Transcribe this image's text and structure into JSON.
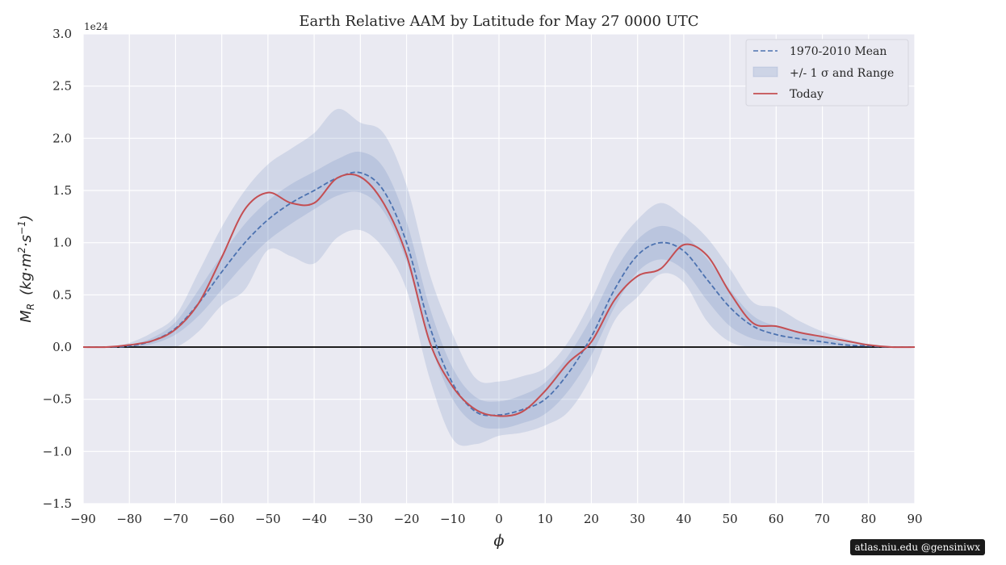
{
  "badge_text": "atlas.niu.edu  @gensiniwx",
  "chart_data": {
    "type": "line",
    "title": "Earth Relative AAM by Latitude for May 27 0000 UTC",
    "xlabel": "ϕ",
    "ylabel": "M_R  (kg·m²·s⁻¹)",
    "ylabel_main": "M",
    "ylabel_sub": "R",
    "ylabel_tail": "(kg·m",
    "ylabel_sup1": "2",
    "ylabel_mid": "·s",
    "ylabel_sup2": "−1",
    "ylabel_close": ")",
    "y_multiplier": "1e24",
    "xlim": [
      -90,
      90
    ],
    "ylim": [
      -1.5,
      3.0
    ],
    "xticks": [
      -90,
      -80,
      -70,
      -60,
      -50,
      -40,
      -30,
      -20,
      -10,
      0,
      10,
      20,
      30,
      40,
      50,
      60,
      70,
      80,
      90
    ],
    "xtick_labels": [
      "−90",
      "−80",
      "−70",
      "−60",
      "−50",
      "−40",
      "−30",
      "−20",
      "−10",
      "0",
      "10",
      "20",
      "30",
      "40",
      "50",
      "60",
      "70",
      "80",
      "90"
    ],
    "yticks": [
      -1.5,
      -1.0,
      -0.5,
      0.0,
      0.5,
      1.0,
      1.5,
      2.0,
      2.5,
      3.0
    ],
    "ytick_labels": [
      "−1.5",
      "−1.0",
      "−0.5",
      "0.0",
      "0.5",
      "1.0",
      "1.5",
      "2.0",
      "2.5",
      "3.0"
    ],
    "grid": true,
    "legend_position": "top-right",
    "zero_line": true,
    "colors": {
      "background": "#eaeaf2",
      "mean": "#4c72b0",
      "band": "#4c72b0",
      "today": "#c44e52",
      "zero": "#000000",
      "grid": "#ffffff"
    },
    "x": [
      -90,
      -85,
      -80,
      -75,
      -70,
      -65,
      -60,
      -55,
      -50,
      -45,
      -40,
      -35,
      -30,
      -25,
      -20,
      -15,
      -10,
      -5,
      0,
      5,
      10,
      15,
      20,
      25,
      30,
      35,
      40,
      45,
      50,
      55,
      60,
      65,
      70,
      75,
      80,
      85,
      90
    ],
    "series": [
      {
        "name": "1970-2010 Mean",
        "style": "dashed",
        "values": [
          0.0,
          0.0,
          0.01,
          0.06,
          0.18,
          0.42,
          0.72,
          1.0,
          1.22,
          1.38,
          1.5,
          1.62,
          1.67,
          1.5,
          1.0,
          0.2,
          -0.35,
          -0.62,
          -0.65,
          -0.6,
          -0.5,
          -0.25,
          0.1,
          0.55,
          0.88,
          1.0,
          0.92,
          0.65,
          0.38,
          0.2,
          0.12,
          0.08,
          0.05,
          0.02,
          0.01,
          0.0,
          0.0
        ]
      },
      {
        "name": "Today",
        "style": "solid",
        "values": [
          0.0,
          0.0,
          0.02,
          0.06,
          0.17,
          0.42,
          0.86,
          1.32,
          1.48,
          1.38,
          1.38,
          1.62,
          1.63,
          1.38,
          0.88,
          0.05,
          -0.38,
          -0.6,
          -0.66,
          -0.62,
          -0.42,
          -0.15,
          0.05,
          0.45,
          0.68,
          0.75,
          0.98,
          0.88,
          0.52,
          0.23,
          0.2,
          0.14,
          0.1,
          0.06,
          0.02,
          0.0,
          0.0
        ]
      }
    ],
    "bands": {
      "name": "+/- 1 σ and Range",
      "sigma_lower": [
        0.0,
        0.0,
        0.0,
        0.03,
        0.12,
        0.3,
        0.55,
        0.8,
        1.02,
        1.18,
        1.32,
        1.45,
        1.48,
        1.3,
        0.82,
        0.05,
        -0.5,
        -0.74,
        -0.78,
        -0.73,
        -0.64,
        -0.42,
        -0.08,
        0.38,
        0.72,
        0.84,
        0.74,
        0.45,
        0.2,
        0.08,
        0.05,
        0.03,
        0.02,
        0.01,
        0.0,
        0.0,
        0.0
      ],
      "sigma_upper": [
        0.0,
        0.0,
        0.02,
        0.09,
        0.24,
        0.55,
        0.88,
        1.18,
        1.4,
        1.56,
        1.68,
        1.8,
        1.87,
        1.72,
        1.2,
        0.38,
        -0.2,
        -0.48,
        -0.52,
        -0.46,
        -0.34,
        -0.08,
        0.28,
        0.72,
        1.03,
        1.16,
        1.08,
        0.85,
        0.55,
        0.3,
        0.2,
        0.14,
        0.09,
        0.04,
        0.01,
        0.0,
        0.0
      ],
      "range_lower": [
        0.0,
        0.0,
        0.0,
        0.0,
        0.0,
        0.15,
        0.4,
        0.55,
        0.93,
        0.87,
        0.8,
        1.05,
        1.12,
        0.95,
        0.55,
        -0.3,
        -0.88,
        -0.93,
        -0.85,
        -0.82,
        -0.75,
        -0.62,
        -0.28,
        0.25,
        0.48,
        0.7,
        0.62,
        0.25,
        0.05,
        0.0,
        0.0,
        0.0,
        0.0,
        0.0,
        0.0,
        0.0,
        0.0
      ],
      "range_upper": [
        0.0,
        0.0,
        0.04,
        0.14,
        0.3,
        0.72,
        1.15,
        1.5,
        1.75,
        1.9,
        2.05,
        2.28,
        2.15,
        2.05,
        1.55,
        0.7,
        0.12,
        -0.3,
        -0.33,
        -0.28,
        -0.2,
        0.05,
        0.45,
        0.93,
        1.22,
        1.38,
        1.25,
        1.05,
        0.75,
        0.43,
        0.38,
        0.25,
        0.15,
        0.08,
        0.03,
        0.0,
        0.0
      ]
    }
  }
}
